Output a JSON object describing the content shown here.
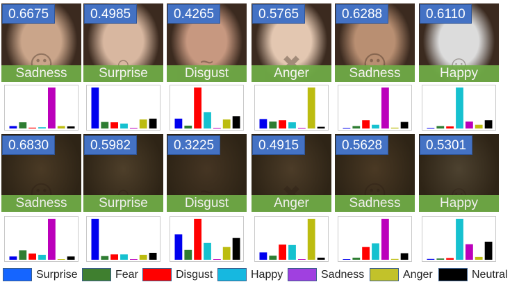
{
  "categories": [
    "Surprise",
    "Fear",
    "Disgust",
    "Happy",
    "Sadness",
    "Anger",
    "Neutral"
  ],
  "colors": [
    "#0000ee",
    "#2e7d32",
    "#ff0000",
    "#16c1cf",
    "#bb00bb",
    "#bcbc10",
    "#000000"
  ],
  "legend_colors": [
    "#1565ff",
    "#3f7f2f",
    "#ff0000",
    "#16b8e0",
    "#a040e0",
    "#c2c22a",
    "#000000"
  ],
  "rows": [
    {
      "tone": "bright",
      "cells": [
        {
          "score": "0.6675",
          "label": "Sadness",
          "face": "face-sad",
          "values": [
            0.06,
            0.15,
            0.02,
            0.03,
            1.0,
            0.06,
            0.05
          ]
        },
        {
          "score": "0.4985",
          "label": "Surprise",
          "face": "face-surprise",
          "values": [
            1.0,
            0.16,
            0.15,
            0.12,
            0.01,
            0.22,
            0.24
          ]
        },
        {
          "score": "0.4265",
          "label": "Disgust",
          "face": "face-disgust",
          "values": [
            0.24,
            0.07,
            1.0,
            0.4,
            0.0,
            0.22,
            0.3
          ]
        },
        {
          "score": "0.5765",
          "label": "Anger",
          "face": "face-anger",
          "values": [
            0.23,
            0.17,
            0.2,
            0.15,
            0.0,
            1.0,
            0.04
          ]
        },
        {
          "score": "0.6288",
          "label": "Sadness",
          "face": "face-sad",
          "values": [
            0.01,
            0.06,
            0.2,
            0.09,
            1.0,
            0.02,
            0.16
          ]
        },
        {
          "score": "0.6110",
          "label": "Happy",
          "face": "face-happy",
          "values": [
            0.0,
            0.06,
            0.05,
            1.0,
            0.17,
            0.09,
            0.2
          ]
        }
      ]
    },
    {
      "tone": "dark",
      "cells": [
        {
          "score": "0.6830",
          "label": "Sadness",
          "face": "face-sad",
          "values": [
            0.08,
            0.23,
            0.15,
            0.12,
            1.0,
            0.0,
            0.08
          ]
        },
        {
          "score": "0.5982",
          "label": "Surprise",
          "face": "face-surprise",
          "values": [
            1.0,
            0.09,
            0.13,
            0.13,
            0.01,
            0.12,
            0.17
          ]
        },
        {
          "score": "0.3225",
          "label": "Disgust",
          "face": "face-disgust",
          "values": [
            0.62,
            0.24,
            1.0,
            0.41,
            0.0,
            0.31,
            0.53
          ]
        },
        {
          "score": "0.4915",
          "label": "Anger",
          "face": "face-anger",
          "values": [
            0.18,
            0.1,
            0.37,
            0.36,
            0.0,
            1.0,
            0.05
          ]
        },
        {
          "score": "0.5628",
          "label": "Sadness",
          "face": "face-sad",
          "values": [
            0.01,
            0.05,
            0.31,
            0.4,
            1.0,
            0.02,
            0.16
          ]
        },
        {
          "score": "0.5301",
          "label": "Happy",
          "face": "face-happy",
          "values": [
            0.02,
            0.03,
            0.04,
            1.0,
            0.38,
            0.07,
            0.44
          ]
        }
      ]
    }
  ],
  "legend": [
    "Surprise",
    "Fear",
    "Disgust",
    "Happy",
    "Sadness",
    "Anger",
    "Neutral"
  ]
}
